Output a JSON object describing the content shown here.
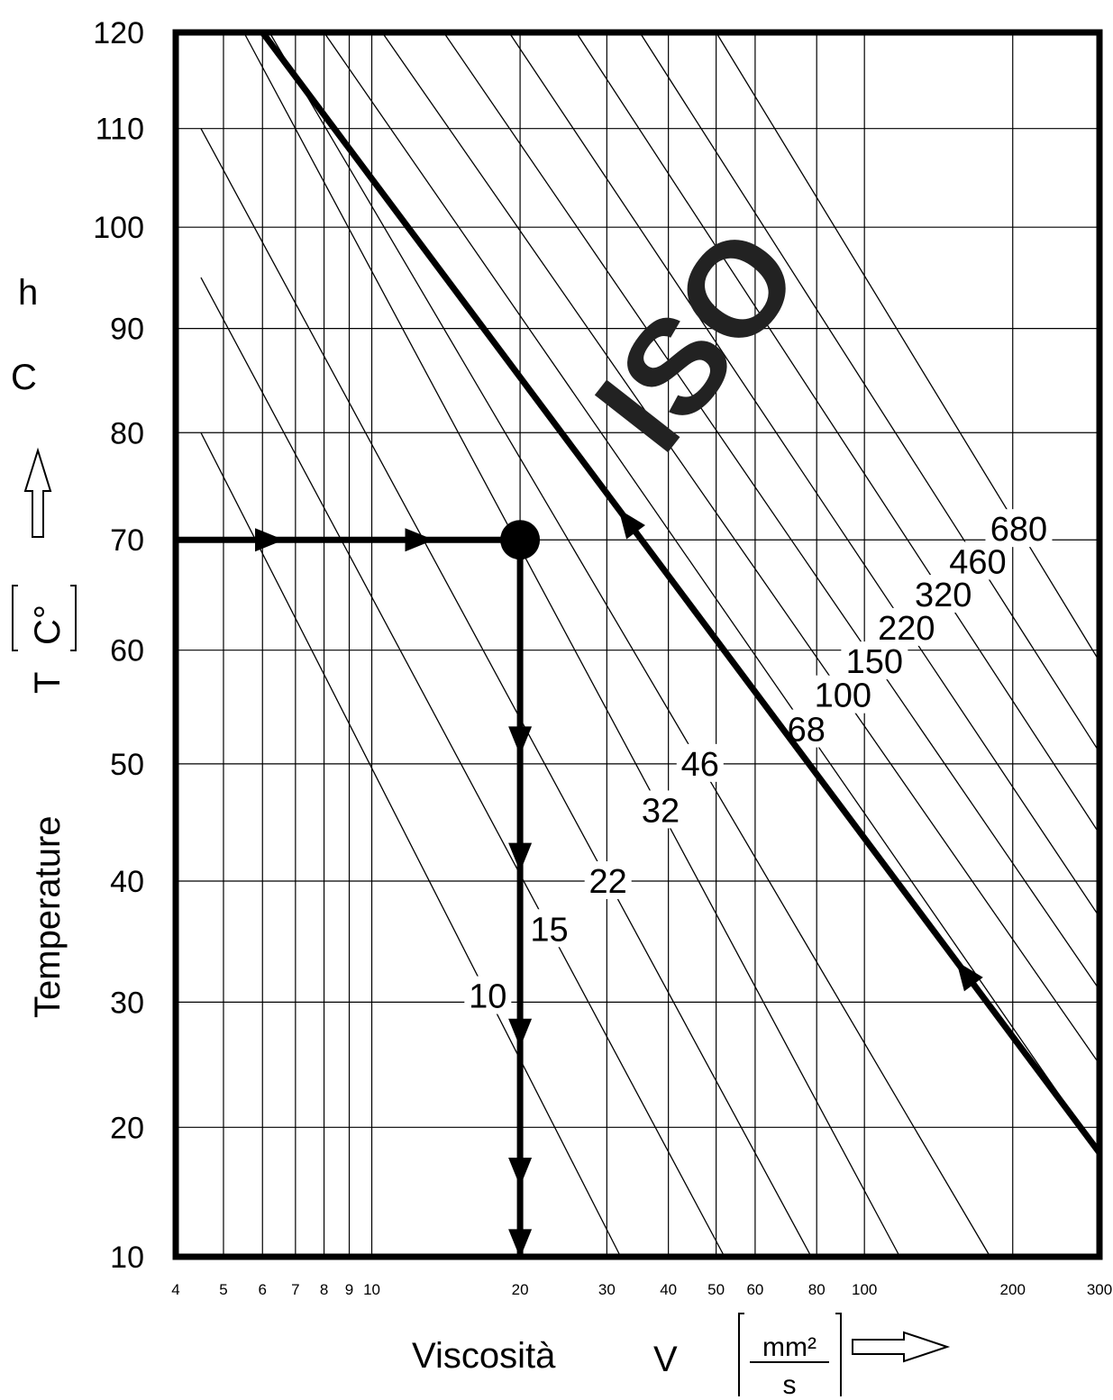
{
  "chart_data": {
    "type": "line",
    "x_scale": "log",
    "y_scale": "walther-log-log",
    "xlim": [
      4,
      300
    ],
    "ylim": [
      10,
      120
    ],
    "x_ticks": [
      4,
      5,
      6,
      7,
      8,
      9,
      10,
      20,
      30,
      40,
      50,
      60,
      80,
      100,
      200,
      300
    ],
    "y_ticks": [
      10,
      20,
      30,
      40,
      50,
      60,
      70,
      80,
      90,
      100,
      110,
      120
    ],
    "xlabel": "Viscosità",
    "xsymbol": "V",
    "xunit_num": "mm²",
    "xunit_den": "s",
    "ylabel": "Temperature",
    "ysymbol": "T",
    "yunit": "C°",
    "side_letters": [
      "h",
      "C"
    ],
    "watermark": "ISO",
    "grid": true,
    "series": [
      {
        "name": "10",
        "x": [
          4.5,
          32
        ],
        "y": [
          80,
          10
        ]
      },
      {
        "name": "15",
        "x": [
          4.5,
          52
        ],
        "y": [
          95,
          10
        ]
      },
      {
        "name": "22",
        "x": [
          4.5,
          78
        ],
        "y": [
          110,
          10
        ]
      },
      {
        "name": "32",
        "x": [
          5.5,
          118
        ],
        "y": [
          120,
          10
        ]
      },
      {
        "name": "46",
        "x": [
          6.2,
          180
        ],
        "y": [
          120,
          10
        ]
      },
      {
        "name": "68",
        "x": [
          8,
          300
        ],
        "y": [
          120,
          18
        ]
      },
      {
        "name": "100",
        "x": [
          10.5,
          300
        ],
        "y": [
          120,
          25
        ]
      },
      {
        "name": "150",
        "x": [
          14,
          300
        ],
        "y": [
          120,
          31
        ]
      },
      {
        "name": "220",
        "x": [
          19,
          300
        ],
        "y": [
          120,
          37
        ]
      },
      {
        "name": "320",
        "x": [
          26,
          300
        ],
        "y": [
          120,
          44
        ]
      },
      {
        "name": "460",
        "x": [
          35,
          300
        ],
        "y": [
          120,
          51
        ]
      },
      {
        "name": "680",
        "x": [
          50,
          300
        ],
        "y": [
          120,
          59
        ]
      }
    ],
    "example_path": {
      "horizontal": {
        "x": [
          4,
          20
        ],
        "y": [
          70,
          70
        ]
      },
      "vertical": {
        "x": [
          20,
          20
        ],
        "y": [
          70,
          10
        ]
      },
      "diagonal": {
        "x": [
          6,
          300
        ],
        "y": [
          120,
          18
        ]
      },
      "point": {
        "x": 20,
        "y": 70
      }
    }
  }
}
